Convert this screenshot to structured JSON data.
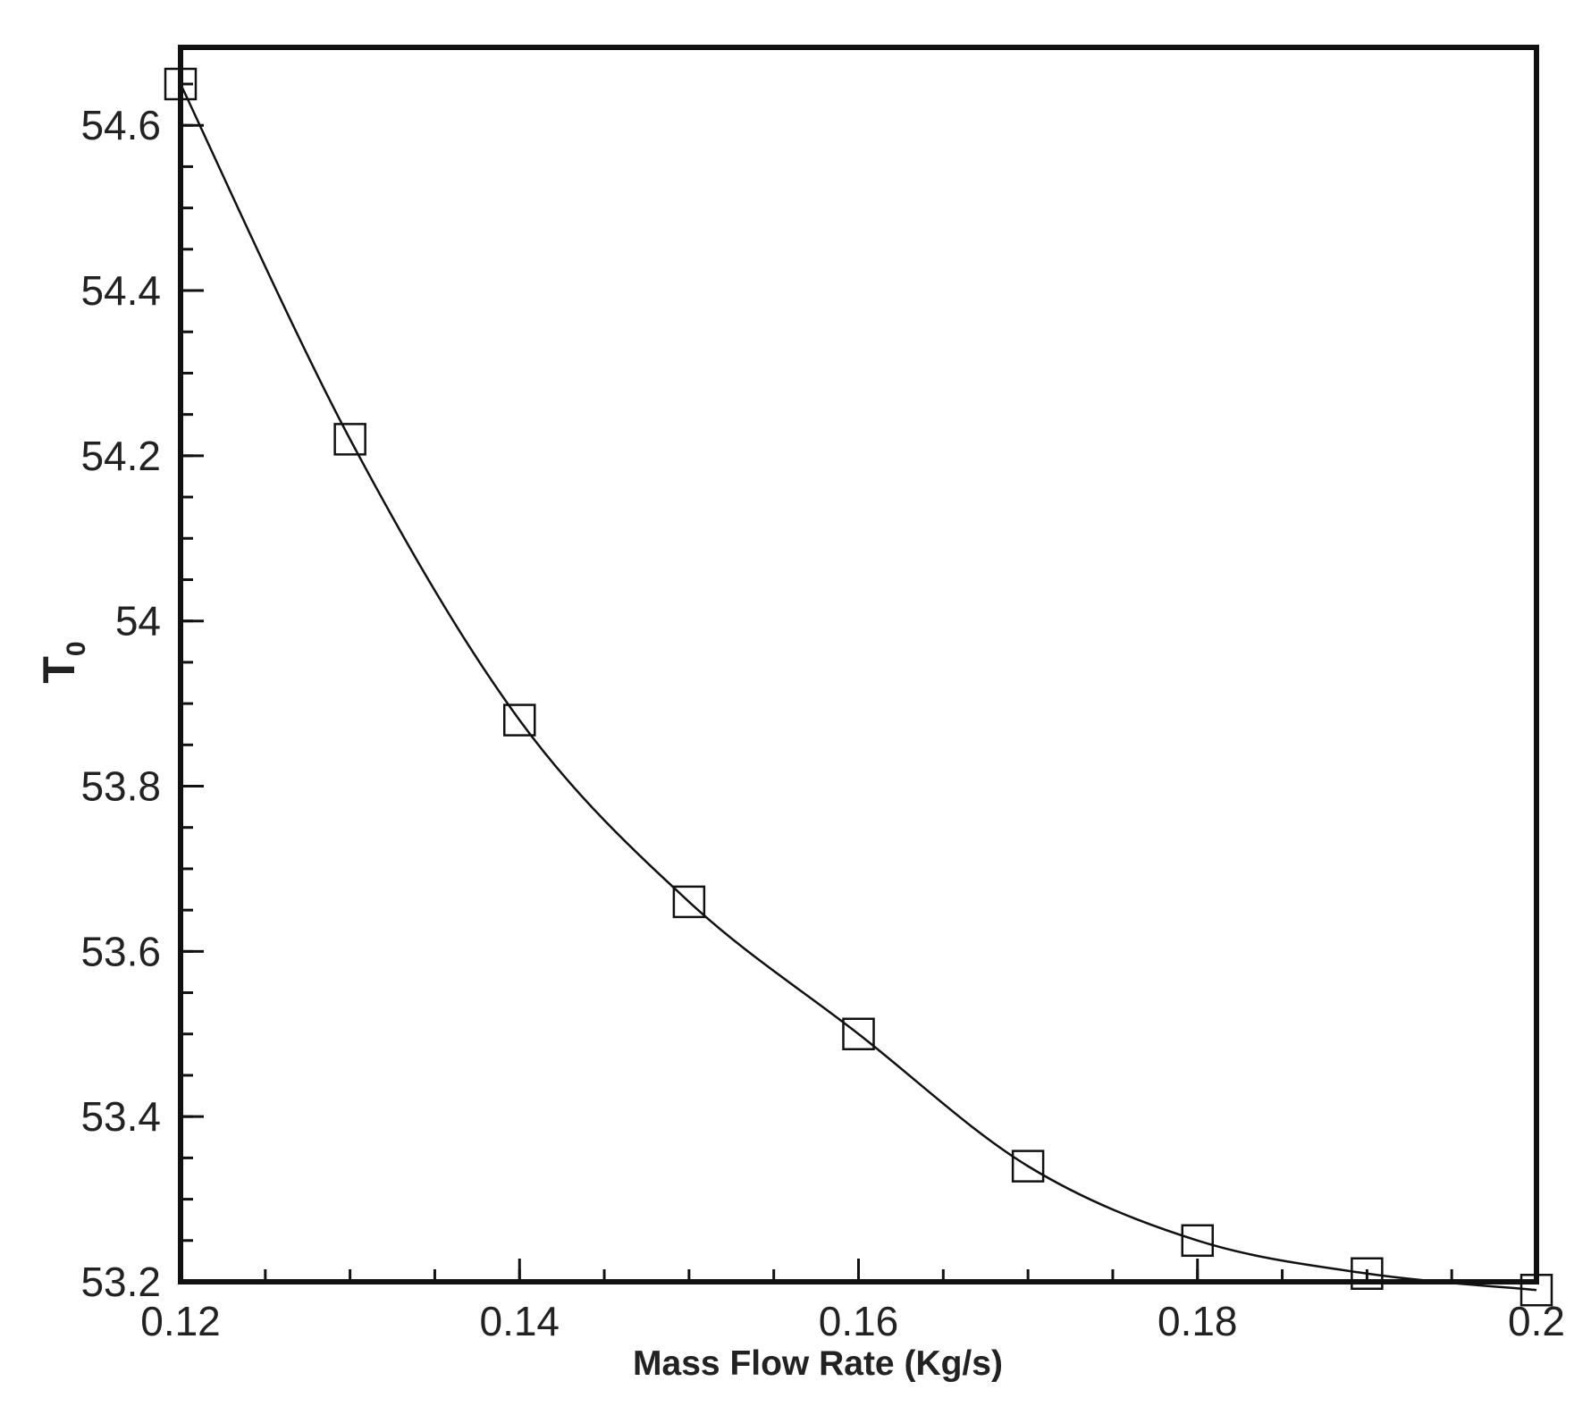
{
  "chart_data": {
    "type": "line",
    "title": "",
    "xlabel": "Mass Flow Rate (Kg/s)",
    "ylabel_main": "T",
    "ylabel_sub": "0",
    "x": [
      0.12,
      0.13,
      0.14,
      0.15,
      0.16,
      0.17,
      0.18,
      0.19,
      0.2
    ],
    "series": [
      {
        "values": [
          54.65,
          54.22,
          53.88,
          53.66,
          53.5,
          53.34,
          53.25,
          53.21,
          53.19
        ]
      }
    ],
    "xlim": [
      0.12,
      0.2
    ],
    "ylim": [
      53.2,
      54.65
    ],
    "xticks": [
      0.12,
      0.14,
      0.16,
      0.18,
      0.2
    ],
    "xtick_labels": [
      "0.12",
      "0.14",
      "0.16",
      "0.18",
      "0.2"
    ],
    "yticks": [
      53.2,
      53.4,
      53.6,
      53.8,
      54,
      54.2,
      54.4,
      54.6
    ],
    "ytick_labels": [
      "53.2",
      "53.4",
      "53.6",
      "53.8",
      "54",
      "54.2",
      "54.4",
      "54.6"
    ],
    "marker": "open-square",
    "grid": false,
    "legend": "none",
    "line_color": "#111111"
  }
}
